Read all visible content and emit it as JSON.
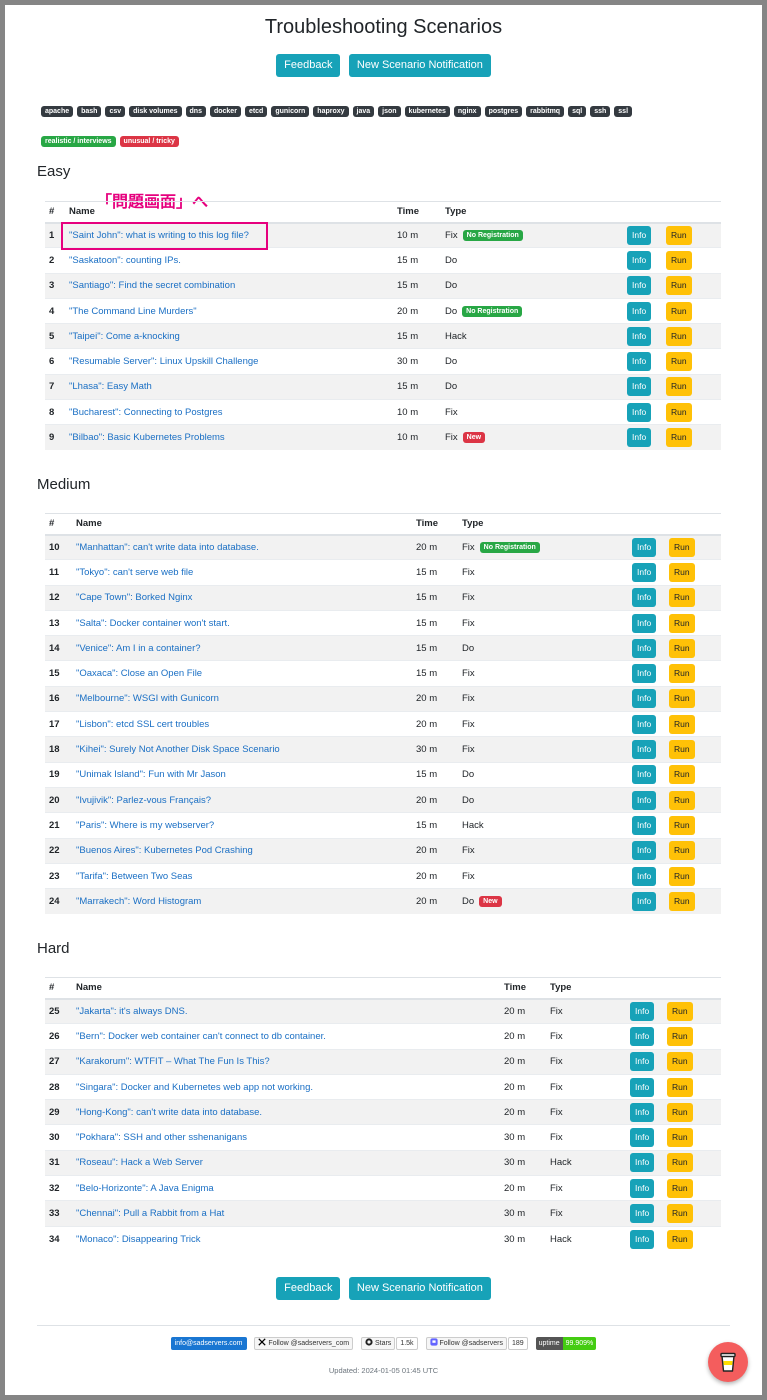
{
  "page": {
    "title": "Troubleshooting Scenarios"
  },
  "buttons": {
    "feedback": "Feedback",
    "notification": "New Scenario Notification"
  },
  "tags": [
    "apache",
    "bash",
    "csv",
    "disk volumes",
    "dns",
    "docker",
    "etcd",
    "gunicorn",
    "haproxy",
    "java",
    "json",
    "kubernetes",
    "nginx",
    "postgres",
    "rabbitmq",
    "sql",
    "ssh",
    "ssl"
  ],
  "legend": {
    "realistic": "realistic / interviews",
    "unusual": "unusual / tricky"
  },
  "annotation": "「問題画面」へ",
  "columns": {
    "num": "#",
    "name": "Name",
    "time": "Time",
    "type": "Type"
  },
  "actions": {
    "info": "Info",
    "run": "Run"
  },
  "badges": {
    "no_registration": "No Registration",
    "new": "New"
  },
  "colors": {
    "teal": "#17a2b8",
    "yellow": "#ffc107",
    "green": "#28a745",
    "red": "#dc3545",
    "annotation": "#e6007e"
  },
  "sections": [
    {
      "title": "Easy",
      "rows": [
        {
          "num": "1",
          "name": "\"Saint John\": what is writing to this log file?",
          "time": "10 m",
          "type": "Fix",
          "badge": "No Registration",
          "badge_kind": "green"
        },
        {
          "num": "2",
          "name": "\"Saskatoon\": counting IPs.",
          "time": "15 m",
          "type": "Do"
        },
        {
          "num": "3",
          "name": "\"Santiago\": Find the secret combination",
          "time": "15 m",
          "type": "Do"
        },
        {
          "num": "4",
          "name": "\"The Command Line Murders\"",
          "time": "20 m",
          "type": "Do",
          "badge": "No Registration",
          "badge_kind": "green"
        },
        {
          "num": "5",
          "name": "\"Taipei\": Come a-knocking",
          "time": "15 m",
          "type": "Hack"
        },
        {
          "num": "6",
          "name": "\"Resumable Server\": Linux Upskill Challenge",
          "time": "30 m",
          "type": "Do"
        },
        {
          "num": "7",
          "name": "\"Lhasa\": Easy Math",
          "time": "15 m",
          "type": "Do"
        },
        {
          "num": "8",
          "name": "\"Bucharest\": Connecting to Postgres",
          "time": "10 m",
          "type": "Fix"
        },
        {
          "num": "9",
          "name": "\"Bilbao\": Basic Kubernetes Problems",
          "time": "10 m",
          "type": "Fix",
          "badge": "New",
          "badge_kind": "red"
        }
      ]
    },
    {
      "title": "Medium",
      "rows": [
        {
          "num": "10",
          "name": "\"Manhattan\": can't write data into database.",
          "time": "20 m",
          "type": "Fix",
          "badge": "No Registration",
          "badge_kind": "green"
        },
        {
          "num": "11",
          "name": "\"Tokyo\": can't serve web file",
          "time": "15 m",
          "type": "Fix"
        },
        {
          "num": "12",
          "name": "\"Cape Town\": Borked Nginx",
          "time": "15 m",
          "type": "Fix"
        },
        {
          "num": "13",
          "name": "\"Salta\": Docker container won't start.",
          "time": "15 m",
          "type": "Fix"
        },
        {
          "num": "14",
          "name": "\"Venice\": Am I in a container?",
          "time": "15 m",
          "type": "Do"
        },
        {
          "num": "15",
          "name": "\"Oaxaca\": Close an Open File",
          "time": "15 m",
          "type": "Fix"
        },
        {
          "num": "16",
          "name": "\"Melbourne\": WSGI with Gunicorn",
          "time": "20 m",
          "type": "Fix"
        },
        {
          "num": "17",
          "name": "\"Lisbon\": etcd SSL cert troubles",
          "time": "20 m",
          "type": "Fix"
        },
        {
          "num": "18",
          "name": "\"Kihei\": Surely Not Another Disk Space Scenario",
          "time": "30 m",
          "type": "Fix"
        },
        {
          "num": "19",
          "name": "\"Unimak Island\": Fun with Mr Jason",
          "time": "15 m",
          "type": "Do"
        },
        {
          "num": "20",
          "name": "\"Ivujivik\": Parlez-vous Français?",
          "time": "20 m",
          "type": "Do"
        },
        {
          "num": "21",
          "name": "\"Paris\": Where is my webserver?",
          "time": "15 m",
          "type": "Hack"
        },
        {
          "num": "22",
          "name": "\"Buenos Aires\": Kubernetes Pod Crashing",
          "time": "20 m",
          "type": "Fix"
        },
        {
          "num": "23",
          "name": "\"Tarifa\": Between Two Seas",
          "time": "20 m",
          "type": "Fix"
        },
        {
          "num": "24",
          "name": "\"Marrakech\": Word Histogram",
          "time": "20 m",
          "type": "Do",
          "badge": "New",
          "badge_kind": "red"
        }
      ]
    },
    {
      "title": "Hard",
      "rows": [
        {
          "num": "25",
          "name": "\"Jakarta\": it's always DNS.",
          "time": "20 m",
          "type": "Fix"
        },
        {
          "num": "26",
          "name": "\"Bern\": Docker web container can't connect to db container.",
          "time": "20 m",
          "type": "Fix"
        },
        {
          "num": "27",
          "name": "\"Karakorum\": WTFIT – What The Fun Is This?",
          "time": "20 m",
          "type": "Fix"
        },
        {
          "num": "28",
          "name": "\"Singara\": Docker and Kubernetes web app not working.",
          "time": "20 m",
          "type": "Fix"
        },
        {
          "num": "29",
          "name": "\"Hong-Kong\": can't write data into database.",
          "time": "20 m",
          "type": "Fix"
        },
        {
          "num": "30",
          "name": "\"Pokhara\": SSH and other sshenanigans",
          "time": "30 m",
          "type": "Fix"
        },
        {
          "num": "31",
          "name": "\"Roseau\": Hack a Web Server",
          "time": "30 m",
          "type": "Hack"
        },
        {
          "num": "32",
          "name": "\"Belo-Horizonte\": A Java Enigma",
          "time": "20 m",
          "type": "Fix"
        },
        {
          "num": "33",
          "name": "\"Chennai\": Pull a Rabbit from a Hat",
          "time": "30 m",
          "type": "Fix"
        },
        {
          "num": "34",
          "name": "\"Monaco\": Disappearing Trick",
          "time": "30 m",
          "type": "Hack"
        }
      ]
    }
  ],
  "footer": {
    "email": "info@sadservers.com",
    "x_follow": "Follow @sadservers_com",
    "x_icon": "x-logo-icon",
    "github_stars": "Stars",
    "github_count": "1.5k",
    "github_icon": "github-icon",
    "mastodon_follow": "Follow @sadservers",
    "mastodon_count": "189",
    "mastodon_icon": "mastodon-icon",
    "uptime_label": "uptime",
    "uptime_value": "99.909%",
    "updated": "Updated: 2024-01-05 01:45 UTC",
    "coffee_icon": "coffee-cup-icon"
  }
}
